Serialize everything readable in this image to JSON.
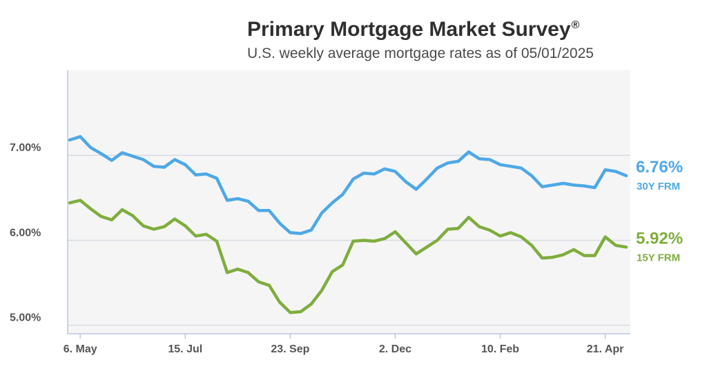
{
  "title": "Primary Mortgage Market Survey",
  "title_mark": "®",
  "subtitle": "U.S. weekly average mortgage rates as of 05/01/2025",
  "chart_data": {
    "type": "line",
    "title": "Primary Mortgage Market Survey®",
    "subtitle": "U.S. weekly average mortgage rates as of 05/01/2025",
    "ylim": [
      4.9,
      8.0
    ],
    "y_ticks": [
      {
        "value": 5.0,
        "label": "5.00%"
      },
      {
        "value": 6.0,
        "label": "6.00%"
      },
      {
        "value": 7.0,
        "label": "7.00%"
      }
    ],
    "x_ticks": [
      {
        "index": 1,
        "label": "6. May"
      },
      {
        "index": 11,
        "label": "15. Jul"
      },
      {
        "index": 21,
        "label": "23. Sep"
      },
      {
        "index": 31,
        "label": "2. Dec"
      },
      {
        "index": 41,
        "label": "10. Feb"
      },
      {
        "index": 51,
        "label": "21. Apr"
      }
    ],
    "grid": true,
    "series": [
      {
        "name": "30Y FRM",
        "color": "#4ea8e6",
        "end_label": "6.76%",
        "values": [
          7.18,
          7.22,
          7.09,
          7.02,
          6.94,
          7.03,
          6.99,
          6.95,
          6.87,
          6.86,
          6.95,
          6.89,
          6.77,
          6.78,
          6.73,
          6.47,
          6.49,
          6.46,
          6.35,
          6.35,
          6.2,
          6.09,
          6.08,
          6.12,
          6.32,
          6.44,
          6.54,
          6.72,
          6.79,
          6.78,
          6.84,
          6.81,
          6.69,
          6.6,
          6.72,
          6.85,
          6.91,
          6.93,
          7.04,
          6.96,
          6.95,
          6.89,
          6.87,
          6.85,
          6.76,
          6.63,
          6.65,
          6.67,
          6.65,
          6.64,
          6.62,
          6.83,
          6.81,
          6.76
        ]
      },
      {
        "name": "15Y FRM",
        "color": "#7fad3d",
        "end_label": "5.92%",
        "values": [
          6.44,
          6.47,
          6.37,
          6.28,
          6.24,
          6.36,
          6.29,
          6.17,
          6.13,
          6.16,
          6.25,
          6.17,
          6.05,
          6.07,
          5.99,
          5.62,
          5.66,
          5.62,
          5.51,
          5.47,
          5.27,
          5.15,
          5.16,
          5.25,
          5.41,
          5.63,
          5.71,
          5.99,
          6.0,
          5.99,
          6.02,
          6.1,
          5.97,
          5.84,
          5.92,
          6.0,
          6.13,
          6.14,
          6.27,
          6.16,
          6.12,
          6.05,
          6.09,
          6.04,
          5.94,
          5.79,
          5.8,
          5.83,
          5.89,
          5.82,
          5.82,
          6.04,
          5.94,
          5.92
        ]
      }
    ]
  }
}
